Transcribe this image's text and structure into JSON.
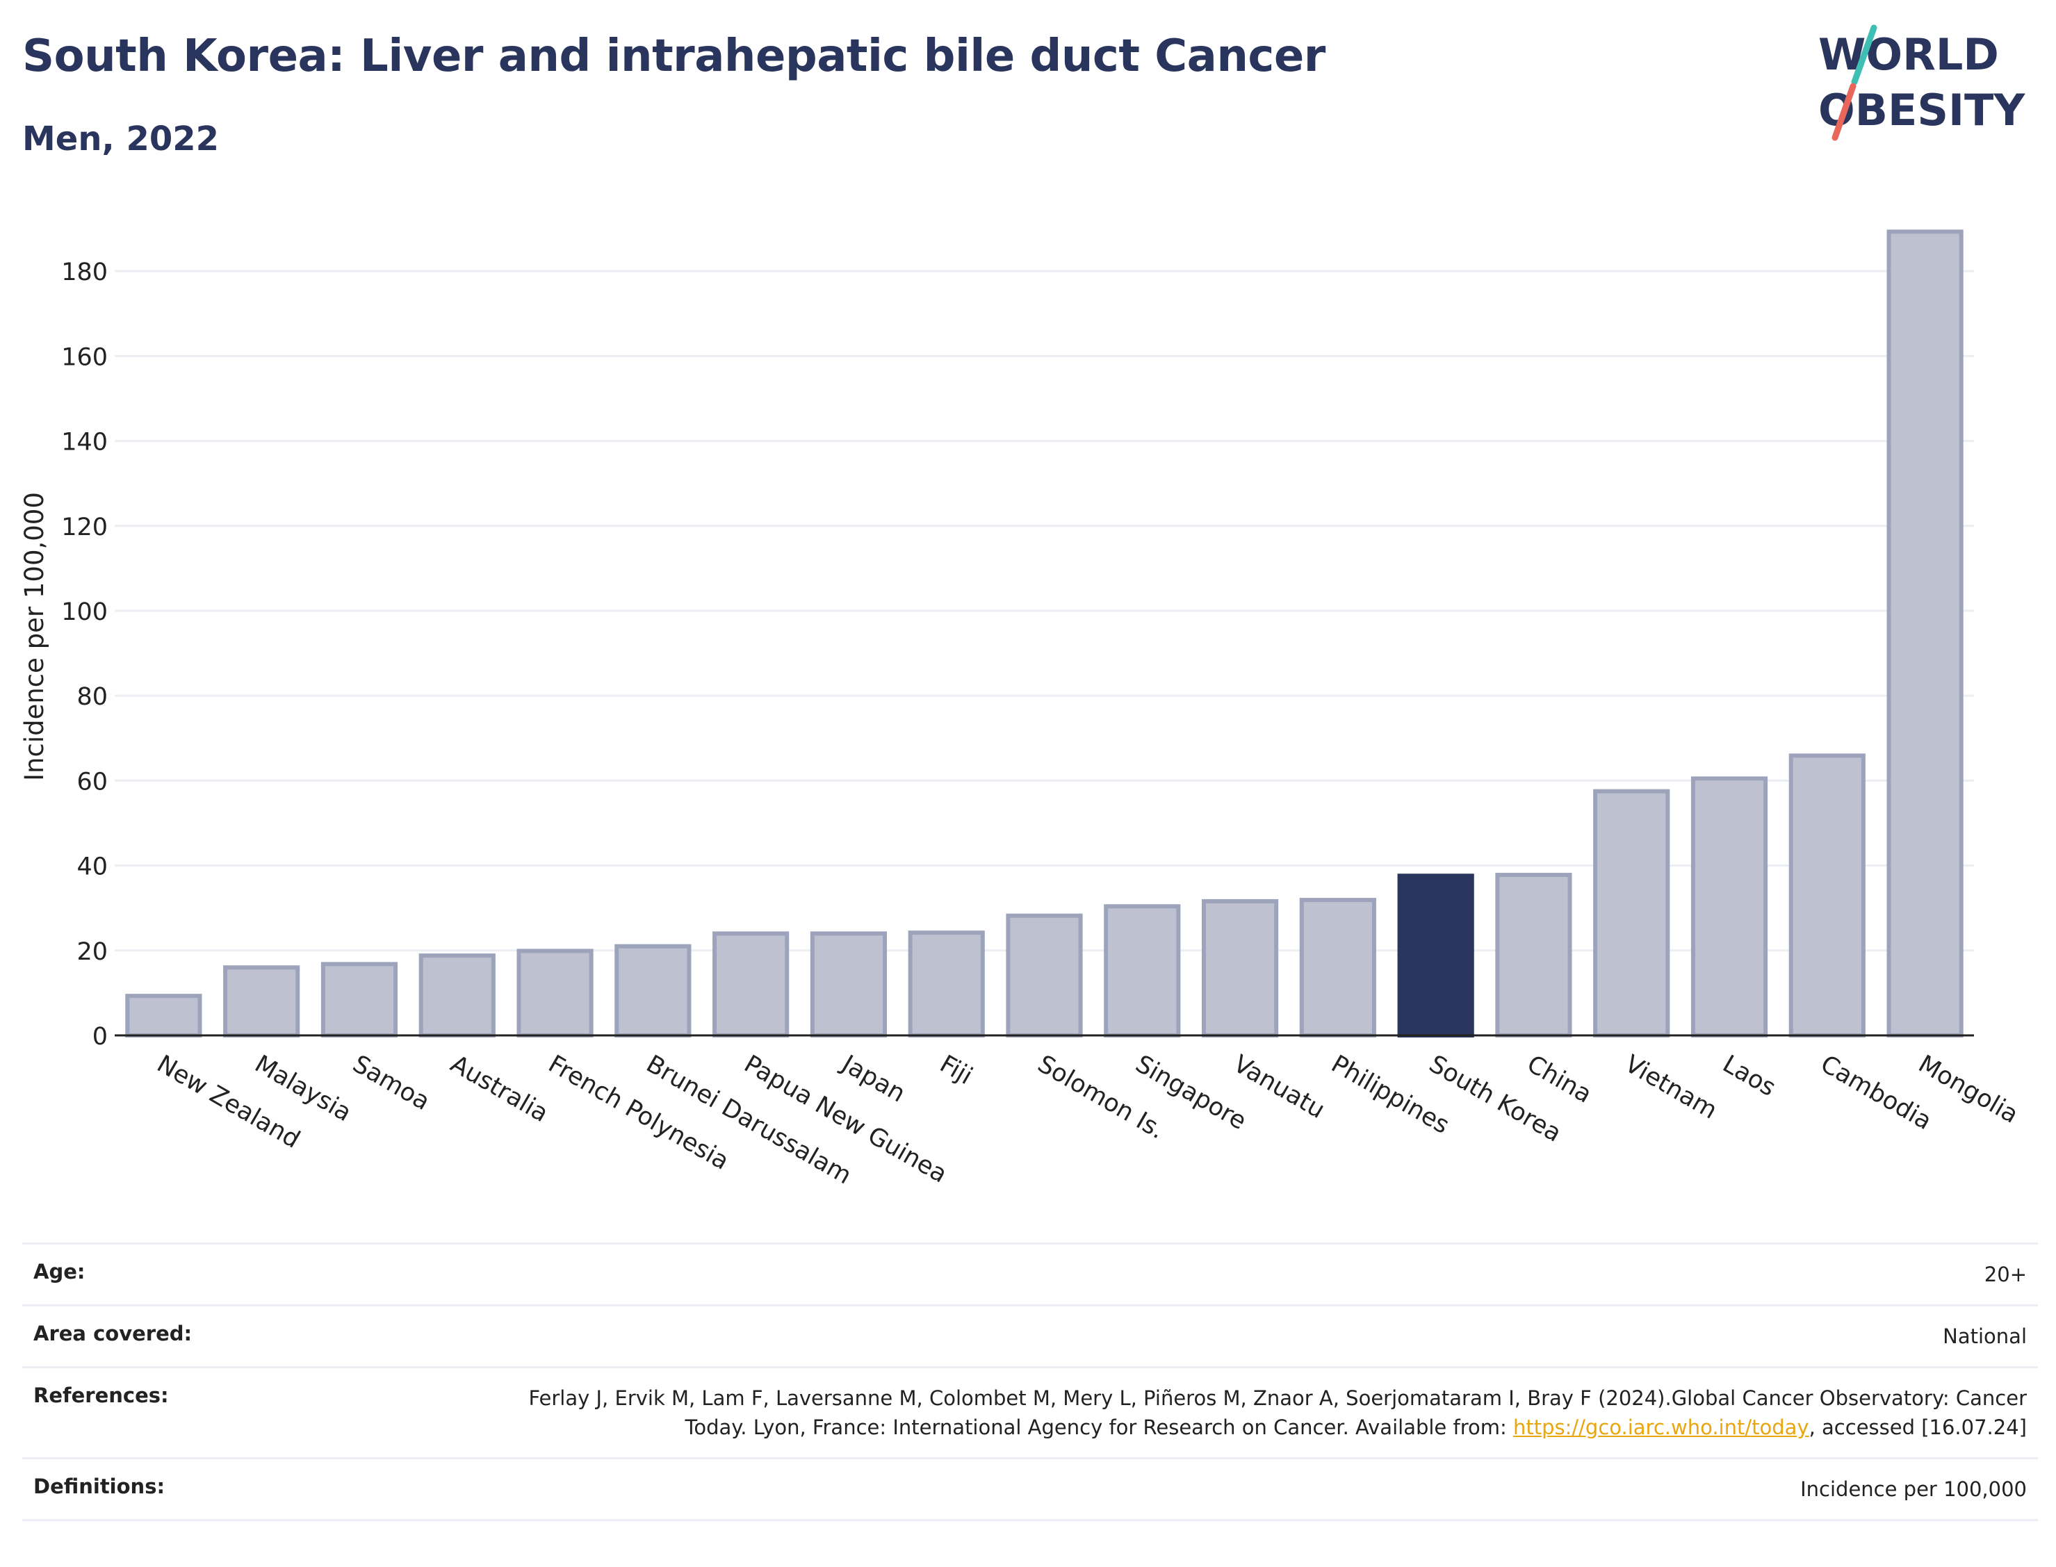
{
  "title": "South Korea: Liver and intrahepatic bile duct Cancer",
  "subtitle": "Men, 2022",
  "logo": {
    "line1": "WORLD",
    "line2": "OBESITY"
  },
  "colors": {
    "highlight": "#2a355e",
    "bar": "#bec2d0",
    "bar_stroke": "#9da3bb",
    "title": "#2a355e",
    "logo_slash_red": "#e8675a",
    "logo_slash_teal": "#3fbfb3",
    "link": "#e8a60f"
  },
  "chart_data": {
    "type": "bar",
    "categories": [
      "New Zealand",
      "Malaysia",
      "Samoa",
      "Australia",
      "French Polynesia",
      "Brunei Darussalam",
      "Papua New Guinea",
      "Japan",
      "Fiji",
      "Solomon Is.",
      "Singapore",
      "Vanuatu",
      "Philippines",
      "South Korea",
      "China",
      "Vietnam",
      "Laos",
      "Cambodia",
      "Mongolia"
    ],
    "values": [
      9.3,
      16,
      16.8,
      18.8,
      19.9,
      21,
      24,
      24,
      24.2,
      28.2,
      30.4,
      31.6,
      31.9,
      37.6,
      37.8,
      57.5,
      60.5,
      65.9,
      189.3
    ],
    "highlight": "South Korea",
    "ylabel": "Incidence per 100,000",
    "ylim": [
      0,
      192
    ],
    "yticks": [
      0,
      20,
      40,
      60,
      80,
      100,
      120,
      140,
      160,
      180
    ],
    "grid": true
  },
  "info": [
    {
      "label": "Age:",
      "value": "20+"
    },
    {
      "label": "Area covered:",
      "value": "National"
    },
    {
      "label": "References:",
      "value_before": "Ferlay J, Ervik M, Lam F, Laversanne M, Colombet M, Mery L, Piñeros M, Znaor A, Soerjomataram I, Bray F (2024).Global Cancer Observatory: Cancer Today. Lyon, France: International Agency for Research on Cancer. Available from: ",
      "link": "https://gco.iarc.who.int/today",
      "value_after": ", accessed [16.07.24]"
    },
    {
      "label": "Definitions:",
      "value": "Incidence per 100,000"
    }
  ]
}
